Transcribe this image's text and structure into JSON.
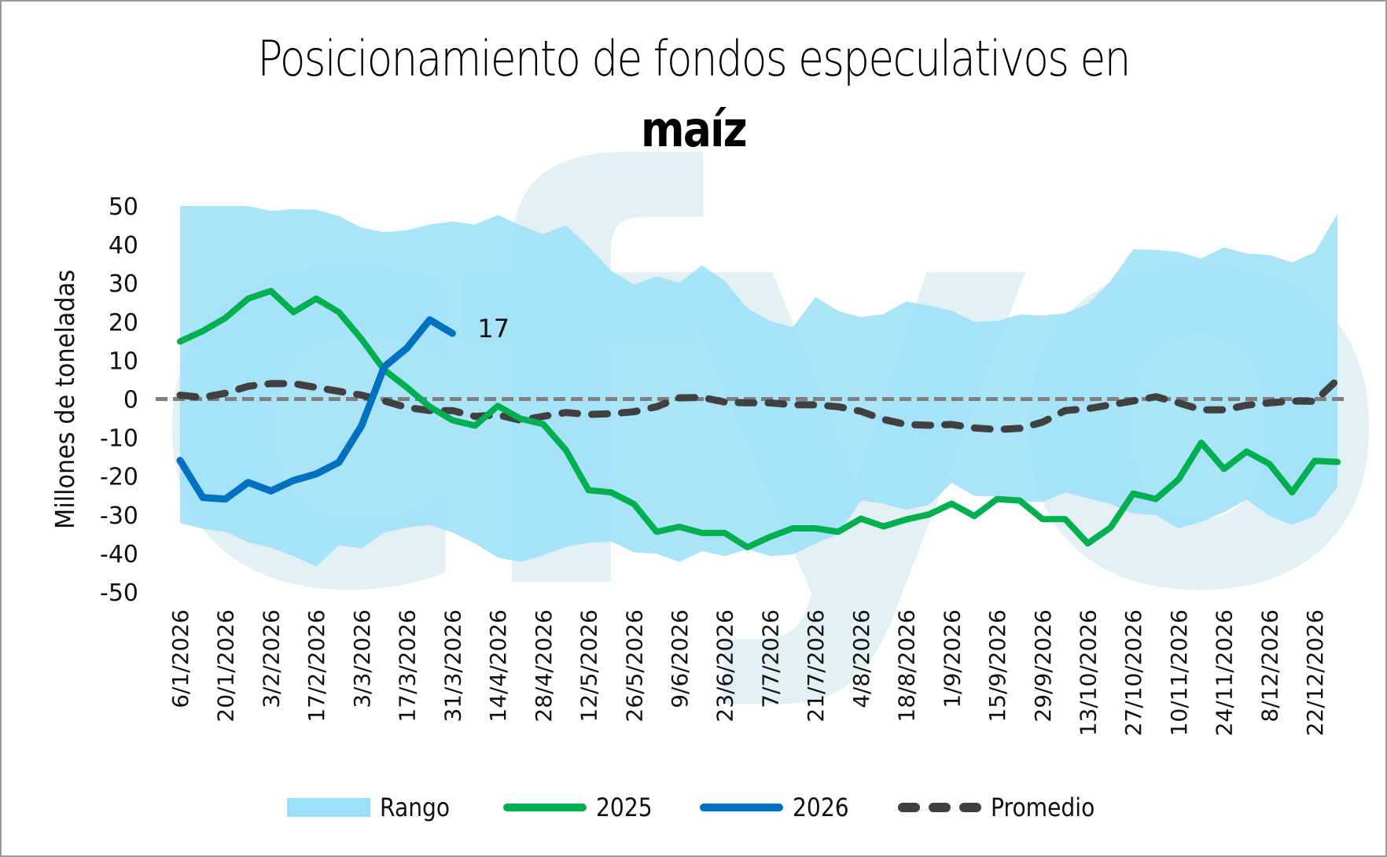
{
  "chart_data": {
    "type": "line",
    "title": "Posicionamiento de fondos especulativos en",
    "title_bold": "maíz",
    "xlabel": "",
    "ylabel": "Millones de toneladas",
    "ylim": [
      -50,
      50
    ],
    "yticks": [
      50,
      40,
      30,
      20,
      10,
      0,
      -10,
      -20,
      -30,
      -40,
      -50
    ],
    "x_tick_labels": [
      "6/1/2026",
      "20/1/2026",
      "3/2/2026",
      "17/2/2026",
      "3/3/2026",
      "17/3/2026",
      "31/3/2026",
      "14/4/2026",
      "28/4/2026",
      "12/5/2026",
      "26/5/2026",
      "9/6/2026",
      "23/6/2026",
      "7/7/2026",
      "21/7/2026",
      "4/8/2026",
      "18/8/2026",
      "1/9/2026",
      "15/9/2026",
      "29/9/2026",
      "13/10/2026",
      "27/10/2026",
      "10/11/2026",
      "24/11/2026",
      "8/12/2026",
      "22/12/2026"
    ],
    "x_points": 52,
    "grid": false,
    "zero_line": "dashed",
    "legend_position": "bottom",
    "colors": {
      "range": "#9bdff8",
      "y2025": "#00b050",
      "y2026": "#0070c0",
      "average": "#404040",
      "zero_line": "#7f7f7f",
      "watermark": "#e2f1f5"
    },
    "watermark_text": "cfyo",
    "series": [
      {
        "name": "Rango",
        "kind": "area",
        "upper": [
          50,
          50,
          50,
          50,
          48.7,
          49.2,
          49,
          47.4,
          44.4,
          43.2,
          43.7,
          45.2,
          46,
          45.2,
          47.7,
          45,
          42.7,
          45,
          39.5,
          33.2,
          29.7,
          31.8,
          30.1,
          34.6,
          30.6,
          23.5,
          20.2,
          18.6,
          26.4,
          22.8,
          21.2,
          22,
          25.3,
          24.2,
          22.9,
          20,
          20.2,
          21.9,
          21.6,
          22.2,
          24.6,
          30.6,
          38.8,
          38.6,
          38.1,
          36.4,
          39.3,
          37.7,
          37.3,
          35.4,
          38,
          48
        ],
        "lower": [
          -32.1,
          -33.6,
          -34.4,
          -37.1,
          -38.5,
          -40.7,
          -43.4,
          -37.9,
          -38.7,
          -34.6,
          -33.3,
          -32.6,
          -34.6,
          -37.4,
          -41.1,
          -42.2,
          -40.5,
          -38.3,
          -37.2,
          -36.9,
          -39.7,
          -40.1,
          -42.2,
          -39.4,
          -40.7,
          -38.9,
          -40.7,
          -40.3,
          -37.4,
          -35,
          -26.3,
          -27.1,
          -28.7,
          -27.4,
          -21.7,
          -25.1,
          -25.2,
          -26.5,
          -26.7,
          -24.2,
          -25.7,
          -27.2,
          -29.7,
          -30.1,
          -33.5,
          -31.8,
          -29.3,
          -26,
          -30.3,
          -32.6,
          -30.3,
          -22.8
        ]
      },
      {
        "name": "2025",
        "kind": "line",
        "values": [
          14.9,
          17.6,
          21,
          26,
          28,
          22.5,
          26,
          22.5,
          15.5,
          7.5,
          3,
          -2,
          -5.5,
          -6.9,
          -1.8,
          -5.1,
          -6.5,
          -13.2,
          -23.6,
          -24.2,
          -27.2,
          -34.4,
          -33.1,
          -34.7,
          -34.7,
          -38.4,
          -35.7,
          -33.5,
          -33.5,
          -34.4,
          -31,
          -33,
          -31.2,
          -29.9,
          -27.1,
          -30.3,
          -25.9,
          -26.3,
          -31.1,
          -31.1,
          -37.4,
          -33.3,
          -24.5,
          -25.9,
          -20.8,
          -11.3,
          -18.1,
          -13.6,
          -16.8,
          -24.2,
          -16,
          -16.3
        ]
      },
      {
        "name": "2026",
        "kind": "line",
        "values": [
          -15.9,
          -25.5,
          -25.9,
          -21.6,
          -23.8,
          -21.1,
          -19.4,
          -16.4,
          -6.9,
          8.4,
          13.2,
          20.5,
          17
        ],
        "end_label": "17"
      },
      {
        "name": "Promedio",
        "kind": "dashed-line",
        "values": [
          1,
          0.4,
          1.5,
          3.3,
          4,
          4,
          3,
          2,
          1,
          -0.5,
          -2.2,
          -3,
          -3,
          -4.5,
          -4.1,
          -5.5,
          -4.5,
          -3.5,
          -4,
          -3.8,
          -3.3,
          -2,
          0.3,
          0.4,
          -0.8,
          -1,
          -1,
          -1.5,
          -1.5,
          -2,
          -3.2,
          -5.3,
          -6.6,
          -6.8,
          -6.6,
          -7.5,
          -7.9,
          -7.6,
          -6,
          -3,
          -2.5,
          -1.5,
          -0.5,
          0.6,
          -1,
          -2.8,
          -2.8,
          -1.6,
          -1,
          -0.5,
          -0.6,
          5
        ]
      }
    ],
    "legend": [
      "Rango",
      "2025",
      "2026",
      "Promedio"
    ]
  }
}
